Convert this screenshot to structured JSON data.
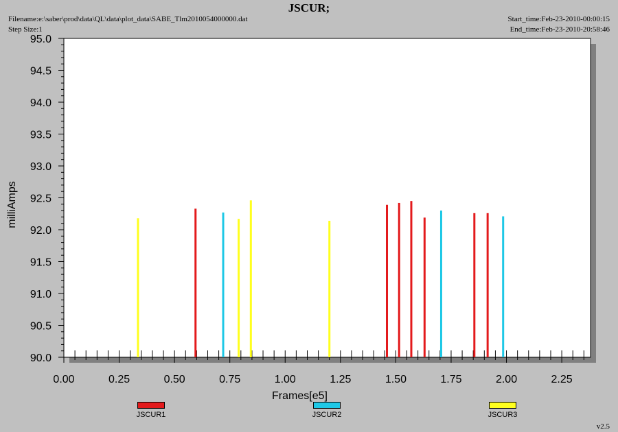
{
  "header": {
    "title": "JSCUR;",
    "filename": "Filename:e:\\saber\\prod\\data\\QL\\data\\plot_data\\SABE_Tlm2010054000000.dat",
    "step_size": "Step Size:1",
    "start_time": "Start_time:Feb-23-2010-00:00:15",
    "end_time": "End_time:Feb-23-2010-20:58:46"
  },
  "version": "v2.5",
  "chart_data": {
    "type": "bar",
    "title": "JSCUR;",
    "xlabel": "Frames[e5]",
    "ylabel": "milliAmps",
    "xlim": [
      0.0,
      2.38
    ],
    "ylim": [
      90.0,
      95.0
    ],
    "x_ticks": [
      "0.00",
      "0.25",
      "0.50",
      "0.75",
      "1.00",
      "1.25",
      "1.50",
      "1.75",
      "2.00",
      "2.25"
    ],
    "y_ticks": [
      "90.0",
      "90.5",
      "91.0",
      "91.5",
      "92.0",
      "92.5",
      "93.0",
      "93.5",
      "94.0",
      "94.5",
      "95.0"
    ],
    "grid": false,
    "legend_position": "bottom",
    "series": [
      {
        "name": "JSCUR1",
        "color": "#e31a1c",
        "points": [
          {
            "x": 0.595,
            "y": 92.33
          },
          {
            "x": 1.46,
            "y": 92.39
          },
          {
            "x": 1.515,
            "y": 92.42
          },
          {
            "x": 1.57,
            "y": 92.45
          },
          {
            "x": 1.63,
            "y": 92.19
          },
          {
            "x": 1.855,
            "y": 92.26
          },
          {
            "x": 1.915,
            "y": 92.26
          }
        ]
      },
      {
        "name": "JSCUR2",
        "color": "#1ec8e6",
        "points": [
          {
            "x": 0.72,
            "y": 92.27
          },
          {
            "x": 1.705,
            "y": 92.3
          },
          {
            "x": 1.985,
            "y": 92.21
          }
        ]
      },
      {
        "name": "JSCUR3",
        "color": "#ffff1e",
        "points": [
          {
            "x": 0.335,
            "y": 92.18
          },
          {
            "x": 0.79,
            "y": 92.17
          },
          {
            "x": 0.845,
            "y": 92.46
          },
          {
            "x": 1.2,
            "y": 92.14
          }
        ]
      }
    ]
  }
}
